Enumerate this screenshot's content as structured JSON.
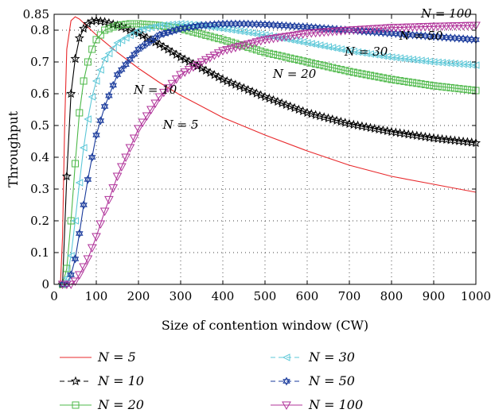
{
  "chart_data": {
    "type": "line",
    "xlabel": "Size of contention window (CW)",
    "ylabel": "Throughput",
    "xlim": [
      0,
      1000
    ],
    "ylim": [
      0,
      0.85
    ],
    "xticks": [
      "0",
      "100",
      "200",
      "300",
      "400",
      "500",
      "600",
      "700",
      "800",
      "900",
      "1000"
    ],
    "yticks": [
      "0",
      "0.1",
      "0.2",
      "0.3",
      "0.4",
      "0.5",
      "0.6",
      "0.7",
      "0.8",
      "0.85"
    ],
    "grid": true,
    "legend_position": "bottom",
    "series": [
      {
        "name": "N = 5",
        "color": "#e8282b",
        "marker": "none",
        "dash": "solid",
        "annotation": "N = 5",
        "points": [
          [
            15,
            0.0
          ],
          [
            20,
            0.15
          ],
          [
            25,
            0.5
          ],
          [
            30,
            0.74
          ],
          [
            40,
            0.83
          ],
          [
            50,
            0.842
          ],
          [
            60,
            0.835
          ],
          [
            80,
            0.81
          ],
          [
            100,
            0.785
          ],
          [
            150,
            0.73
          ],
          [
            200,
            0.68
          ],
          [
            250,
            0.635
          ],
          [
            300,
            0.595
          ],
          [
            400,
            0.525
          ],
          [
            500,
            0.47
          ],
          [
            600,
            0.42
          ],
          [
            700,
            0.375
          ],
          [
            800,
            0.34
          ],
          [
            900,
            0.315
          ],
          [
            1000,
            0.29
          ]
        ]
      },
      {
        "name": "N = 10",
        "color": "#000000",
        "marker": "star",
        "dash": "dashed",
        "annotation": "N = 10",
        "points": [
          [
            20,
            0.0
          ],
          [
            30,
            0.34
          ],
          [
            40,
            0.6
          ],
          [
            50,
            0.71
          ],
          [
            60,
            0.775
          ],
          [
            70,
            0.805
          ],
          [
            80,
            0.82
          ],
          [
            90,
            0.828
          ],
          [
            100,
            0.83
          ],
          [
            120,
            0.826
          ],
          [
            150,
            0.815
          ],
          [
            200,
            0.79
          ],
          [
            250,
            0.755
          ],
          [
            300,
            0.715
          ],
          [
            350,
            0.68
          ],
          [
            400,
            0.645
          ],
          [
            500,
            0.59
          ],
          [
            600,
            0.54
          ],
          [
            700,
            0.505
          ],
          [
            800,
            0.48
          ],
          [
            900,
            0.46
          ],
          [
            1000,
            0.445
          ]
        ]
      },
      {
        "name": "N = 20",
        "color": "#4cb848",
        "marker": "square",
        "dash": "solid",
        "annotation": "N = 20",
        "points": [
          [
            20,
            0.0
          ],
          [
            30,
            0.05
          ],
          [
            40,
            0.2
          ],
          [
            50,
            0.38
          ],
          [
            60,
            0.54
          ],
          [
            70,
            0.64
          ],
          [
            80,
            0.7
          ],
          [
            90,
            0.74
          ],
          [
            100,
            0.77
          ],
          [
            120,
            0.8
          ],
          [
            150,
            0.815
          ],
          [
            180,
            0.82
          ],
          [
            200,
            0.82
          ],
          [
            250,
            0.815
          ],
          [
            300,
            0.805
          ],
          [
            400,
            0.77
          ],
          [
            500,
            0.73
          ],
          [
            600,
            0.7
          ],
          [
            700,
            0.67
          ],
          [
            800,
            0.645
          ],
          [
            900,
            0.625
          ],
          [
            1000,
            0.61
          ]
        ]
      },
      {
        "name": "N = 30",
        "color": "#5ec8d8",
        "marker": "triangle-left",
        "dash": "dashed",
        "annotation": "N = 30",
        "points": [
          [
            20,
            0.0
          ],
          [
            30,
            0.02
          ],
          [
            40,
            0.09
          ],
          [
            50,
            0.2
          ],
          [
            60,
            0.32
          ],
          [
            70,
            0.43
          ],
          [
            80,
            0.52
          ],
          [
            90,
            0.59
          ],
          [
            100,
            0.64
          ],
          [
            120,
            0.71
          ],
          [
            150,
            0.76
          ],
          [
            200,
            0.8
          ],
          [
            250,
            0.815
          ],
          [
            300,
            0.82
          ],
          [
            350,
            0.815
          ],
          [
            400,
            0.805
          ],
          [
            500,
            0.785
          ],
          [
            600,
            0.76
          ],
          [
            700,
            0.735
          ],
          [
            800,
            0.715
          ],
          [
            900,
            0.7
          ],
          [
            1000,
            0.69
          ]
        ]
      },
      {
        "name": "N = 50",
        "color": "#1a3b9c",
        "marker": "hexagram",
        "dash": "dashed",
        "annotation": "N = 50",
        "points": [
          [
            20,
            0.0
          ],
          [
            30,
            0.0
          ],
          [
            40,
            0.03
          ],
          [
            50,
            0.08
          ],
          [
            60,
            0.16
          ],
          [
            70,
            0.25
          ],
          [
            80,
            0.33
          ],
          [
            100,
            0.47
          ],
          [
            120,
            0.56
          ],
          [
            150,
            0.66
          ],
          [
            200,
            0.74
          ],
          [
            250,
            0.785
          ],
          [
            300,
            0.805
          ],
          [
            350,
            0.815
          ],
          [
            400,
            0.82
          ],
          [
            450,
            0.82
          ],
          [
            500,
            0.818
          ],
          [
            600,
            0.81
          ],
          [
            700,
            0.8
          ],
          [
            800,
            0.79
          ],
          [
            900,
            0.78
          ],
          [
            1000,
            0.77
          ]
        ]
      },
      {
        "name": "N = 100",
        "color": "#b0339a",
        "marker": "triangle-down",
        "dash": "solid",
        "annotation": "N = 100",
        "points": [
          [
            20,
            0.0
          ],
          [
            40,
            0.0
          ],
          [
            50,
            0.01
          ],
          [
            60,
            0.03
          ],
          [
            80,
            0.08
          ],
          [
            100,
            0.15
          ],
          [
            120,
            0.23
          ],
          [
            150,
            0.34
          ],
          [
            200,
            0.49
          ],
          [
            250,
            0.59
          ],
          [
            300,
            0.66
          ],
          [
            350,
            0.7
          ],
          [
            400,
            0.735
          ],
          [
            500,
            0.77
          ],
          [
            600,
            0.79
          ],
          [
            700,
            0.8
          ],
          [
            800,
            0.808
          ],
          [
            900,
            0.812
          ],
          [
            1000,
            0.815
          ]
        ]
      }
    ],
    "annotations": [
      {
        "text": "N = 5",
        "x": 300,
        "y": 0.49
      },
      {
        "text": "N = 10",
        "x": 240,
        "y": 0.6
      },
      {
        "text": "N = 20",
        "x": 570,
        "y": 0.65
      },
      {
        "text": "N = 30",
        "x": 740,
        "y": 0.72
      },
      {
        "text": "N = 50",
        "x": 870,
        "y": 0.77
      },
      {
        "text": "N = 100",
        "x": 930,
        "y": 0.84
      }
    ]
  }
}
